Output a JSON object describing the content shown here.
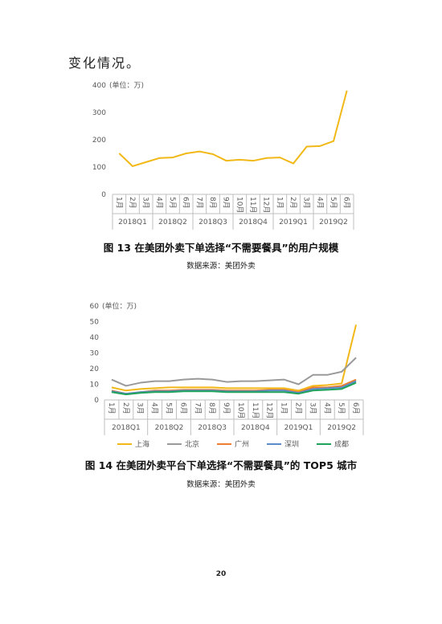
{
  "intro": "变化情况。",
  "page_number": "20",
  "chart_data": [
    {
      "type": "line",
      "unit": "(单位：万)",
      "caption": "图 13   在美团外卖下单选择“不需要餐具”的用户规模",
      "source": "数据来源：美团外卖",
      "categories": [
        "1月",
        "2月",
        "3月",
        "4月",
        "5月",
        "6月",
        "7月",
        "8月",
        "9月",
        "10月",
        "11月",
        "12月",
        "1月",
        "2月",
        "3月",
        "4月",
        "5月",
        "6月"
      ],
      "groups": [
        "2018Q1",
        "2018Q2",
        "2018Q3",
        "2018Q4",
        "2019Q1",
        "2019Q2"
      ],
      "series": [
        {
          "color": "#f2b817",
          "values": [
            150,
            103,
            118,
            133,
            135,
            150,
            157,
            147,
            123,
            127,
            123,
            133,
            135,
            113,
            175,
            177,
            195,
            380
          ]
        }
      ],
      "ylim": [
        0,
        400
      ],
      "yticks": [
        0,
        100,
        200,
        300,
        400
      ]
    },
    {
      "type": "line",
      "unit": "(单位：万)",
      "caption": "图 14   在美团外卖平台下单选择“不需要餐具”的 TOP5 城市",
      "source": "数据来源：美团外卖",
      "categories": [
        "1月",
        "2月",
        "3月",
        "4月",
        "5月",
        "6月",
        "7月",
        "8月",
        "9月",
        "10月",
        "11月",
        "12月",
        "1月",
        "2月",
        "3月",
        "4月",
        "5月",
        "6月"
      ],
      "groups": [
        "2018Q1",
        "2018Q2",
        "2018Q3",
        "2018Q4",
        "2019Q1",
        "2019Q2"
      ],
      "series": [
        {
          "name": "上海",
          "color": "#f2b817",
          "values": [
            8,
            6,
            7,
            7.5,
            8,
            8,
            8,
            8,
            7.5,
            7.5,
            7.5,
            7.5,
            7.5,
            6,
            9,
            9.5,
            10.5,
            48
          ]
        },
        {
          "name": "北京",
          "color": "#9a9a9a",
          "values": [
            13,
            9,
            11,
            12,
            12,
            13,
            13.5,
            13,
            11.5,
            12,
            12,
            12.5,
            13,
            10,
            16,
            16,
            18,
            27
          ]
        },
        {
          "name": "广州",
          "color": "#ed7d31",
          "values": [
            6,
            4,
            5,
            6,
            6,
            6.5,
            6.5,
            6.5,
            6,
            6,
            6,
            6.5,
            6.5,
            5,
            8,
            8,
            9,
            13
          ]
        },
        {
          "name": "深圳",
          "color": "#5b8bc9",
          "values": [
            5.5,
            4,
            5,
            5.5,
            5.5,
            6,
            6,
            6,
            5.5,
            5.5,
            5.5,
            6,
            6,
            4.5,
            7,
            7.5,
            8,
            12
          ]
        },
        {
          "name": "成都",
          "color": "#1fa35a",
          "values": [
            5,
            3.5,
            4.5,
            5,
            5,
            5.5,
            5.5,
            5.5,
            5,
            5,
            5,
            5,
            5,
            4,
            6,
            6.5,
            7,
            11
          ]
        }
      ],
      "ylim": [
        0,
        60
      ],
      "yticks": [
        0,
        10,
        20,
        30,
        40,
        50,
        60
      ]
    }
  ]
}
